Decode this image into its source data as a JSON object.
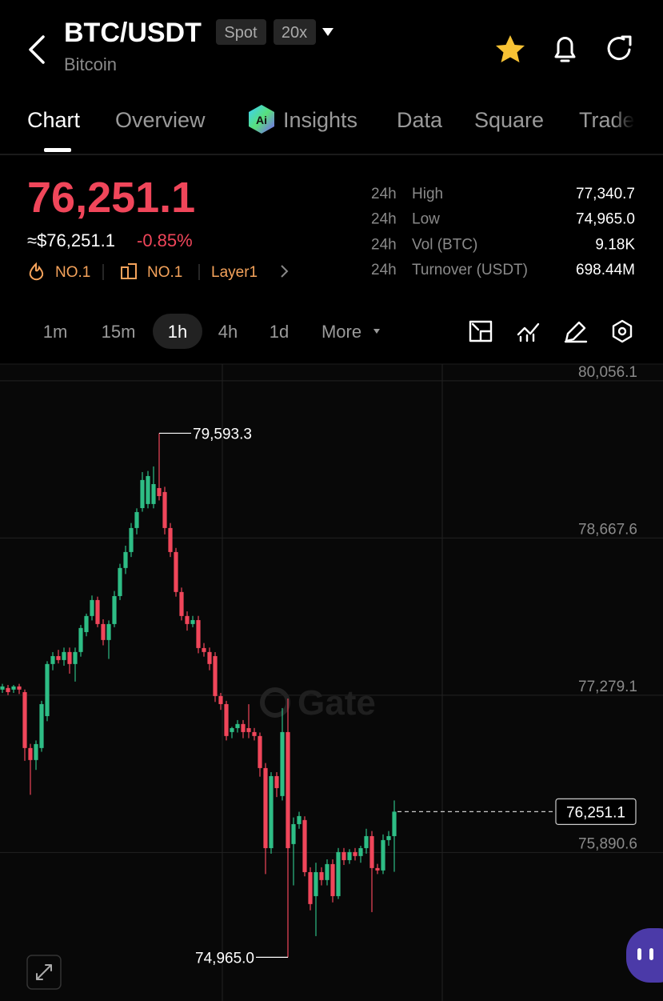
{
  "header": {
    "title": "BTC/USDT",
    "badges": [
      "Spot",
      "20x"
    ],
    "subtitle": "Bitcoin"
  },
  "tabs": [
    "Chart",
    "Overview",
    "Insights",
    "Data",
    "Square",
    "Trade"
  ],
  "price": {
    "last": "76,251.1",
    "fiat": "≈$76,251.1",
    "change": "-0.85%"
  },
  "tags": [
    "NO.1",
    "NO.1",
    "Layer1"
  ],
  "stats": [
    {
      "period": "24h",
      "label": "High",
      "value": "77,340.7"
    },
    {
      "period": "24h",
      "label": "Low",
      "value": "74,965.0"
    },
    {
      "period": "24h",
      "label": "Vol (BTC)",
      "value": "9.18K"
    },
    {
      "period": "24h",
      "label": "Turnover (USDT)",
      "value": "698.44M"
    }
  ],
  "timeframes": [
    "1m",
    "15m",
    "1h",
    "4h",
    "1d",
    "More"
  ],
  "watermark": "Gate",
  "chart_data": {
    "type": "candlestick",
    "up_color": "#2ebd85",
    "down_color": "#f0465a",
    "grid": true,
    "ylim": [
      74579,
      80204
    ],
    "yticks": [
      {
        "value": 80056.1,
        "label": "80,056.1"
      },
      {
        "value": 78667.6,
        "label": "78,667.6"
      },
      {
        "value": 77279.1,
        "label": "77,279.1"
      },
      {
        "value": 75890.6,
        "label": "75,890.6"
      }
    ],
    "open": [
      77329,
      77343,
      77329,
      77357,
      77307,
      76813,
      76707,
      76813,
      77095,
      77555,
      77625,
      77590,
      77661,
      77555,
      77661,
      77837,
      77979,
      78120,
      77908,
      77767,
      77908,
      78155,
      78403,
      78544,
      78756,
      78932,
      78968,
      78968,
      79109,
      79074,
      78756,
      78544,
      78191,
      77979,
      77908,
      77943,
      77696,
      77661,
      77625,
      77272,
      77201,
      76954,
      76989,
      77025,
      76989,
      76954,
      76919,
      76636,
      75929,
      76565,
      76389,
      76954,
      75965,
      76141,
      76177,
      75717,
      75505,
      75717,
      75647,
      75788,
      75505,
      75894,
      75823,
      75894,
      75859,
      75929,
      76035,
      75753,
      75732,
      76000,
      76035
    ],
    "high": [
      77380,
      77370,
      77370,
      77380,
      77330,
      76850,
      76880,
      77230,
      77580,
      77660,
      77680,
      77700,
      77700,
      77700,
      77900,
      78000,
      78160,
      78150,
      77950,
      77940,
      78200,
      78440,
      78600,
      78800,
      78930,
      79250,
      79260,
      79300,
      79593.3,
      79120,
      78800,
      78580,
      78230,
      78020,
      77980,
      77980,
      77740,
      77700,
      77660,
      77300,
      77230,
      77000,
      77060,
      77060,
      77200,
      76990,
      76950,
      76680,
      76600,
      76600,
      77166,
      77250,
      76200,
      76250,
      76210,
      75760,
      75800,
      75760,
      75830,
      75830,
      75930,
      75930,
      75920,
      75930,
      75950,
      76100,
      76080,
      75790,
      76050,
      76080,
      76350
    ],
    "low": [
      77300,
      77280,
      77300,
      77290,
      76700,
      76400,
      76620,
      76780,
      77050,
      77500,
      77560,
      77540,
      77470,
      77400,
      77620,
      77800,
      77940,
      77880,
      77720,
      77600,
      77880,
      78120,
      78350,
      78500,
      78700,
      78900,
      78930,
      78930,
      79000,
      78700,
      78500,
      78150,
      77940,
      77850,
      77880,
      77650,
      77620,
      77500,
      77220,
      77150,
      76880,
      76900,
      76950,
      76900,
      76900,
      76880,
      76560,
      75700,
      75880,
      76380,
      76350,
      74965.0,
      75600,
      76100,
      75680,
      75380,
      75152,
      75600,
      75600,
      75450,
      75480,
      75780,
      75790,
      75820,
      75800,
      75880,
      75364,
      75700,
      75700,
      75950,
      75720
    ],
    "close": [
      77357,
      77307,
      77357,
      77329,
      76813,
      76707,
      76848,
      77201,
      77555,
      77625,
      77590,
      77661,
      77555,
      77661,
      77873,
      77979,
      78120,
      77908,
      77767,
      77908,
      78155,
      78403,
      78544,
      78756,
      78897,
      79180,
      79215,
      79144,
      79038,
      78756,
      78544,
      78191,
      77979,
      77908,
      77943,
      77696,
      77661,
      77555,
      77272,
      77201,
      76919,
      76989,
      77025,
      76954,
      76954,
      76919,
      76636,
      75929,
      76565,
      76459,
      76954,
      75929,
      76141,
      76212,
      75717,
      75435,
      75717,
      75647,
      75788,
      75505,
      75894,
      75823,
      75894,
      75859,
      75929,
      76035,
      75753,
      75732,
      76000,
      76035,
      76251.1
    ],
    "annotations": [
      {
        "value": 79593.3,
        "label": "79,593.3"
      },
      {
        "value": 74965.0,
        "label": "74,965.0"
      }
    ],
    "last_price": {
      "value": 76251.1,
      "label": "76,251.1"
    }
  }
}
